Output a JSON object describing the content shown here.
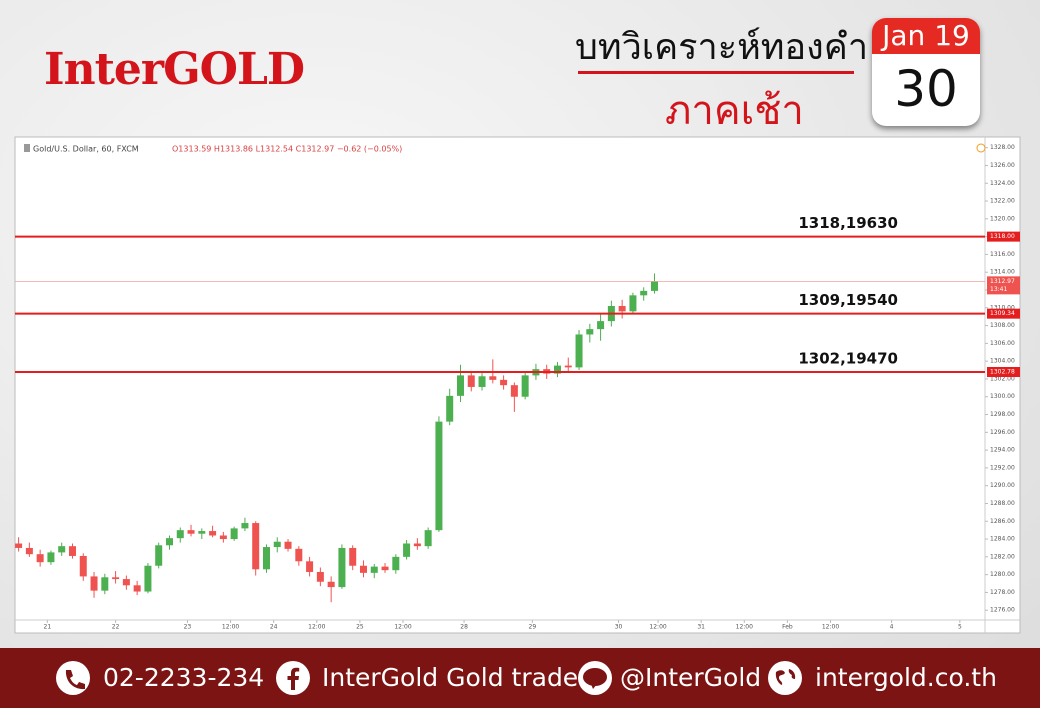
{
  "header": {
    "brand": "InterGOLD",
    "title": "บทวิเคราะห์ทองคำ",
    "subtitle": "ภาคเช้า",
    "calendar_month": "Jan 19",
    "calendar_day": "30"
  },
  "chart_data": {
    "type": "candlestick",
    "legend_symbol": "Gold/U.S. Dollar, 60, FXCM",
    "legend_values": "O1313.59 H1313.86 L1312.54 C1312.97 −0.62 (−0.05%)",
    "up_color": "#4caf50",
    "down_color": "#ef5350",
    "x": [
      1,
      4,
      7,
      10,
      13,
      16,
      19,
      22,
      25,
      28,
      31,
      34,
      37,
      40,
      43,
      46,
      49,
      52,
      55,
      58,
      61,
      64,
      67,
      70,
      73,
      76,
      79,
      82,
      85,
      88,
      91,
      94,
      97,
      100,
      103,
      106,
      109,
      112,
      115,
      118,
      121,
      124,
      127,
      130,
      133,
      136,
      139,
      142,
      145,
      148,
      151,
      154,
      157,
      160,
      163,
      166,
      169,
      172,
      175,
      178
    ],
    "open": [
      1283.5,
      1283.0,
      1282.3,
      1281.4,
      1282.5,
      1283.2,
      1282.1,
      1279.8,
      1278.2,
      1279.7,
      1279.5,
      1278.8,
      1278.1,
      1281.0,
      1283.3,
      1284.1,
      1285.0,
      1284.6,
      1284.9,
      1284.4,
      1284.0,
      1285.2,
      1285.8,
      1280.6,
      1283.1,
      1283.7,
      1282.9,
      1281.5,
      1280.3,
      1279.2,
      1278.6,
      1283.0,
      1281.0,
      1280.2,
      1280.9,
      1280.5,
      1282.0,
      1283.5,
      1283.2,
      1285.0,
      1297.2,
      1300.1,
      1302.4,
      1301.1,
      1302.3,
      1301.9,
      1301.3,
      1300.0,
      1302.4,
      1303.1,
      1302.6,
      1303.5,
      1303.3,
      1307.0,
      1307.6,
      1308.5,
      1310.2,
      1309.6,
      1311.4,
      1311.9
    ],
    "high": [
      1284.2,
      1283.6,
      1282.8,
      1282.7,
      1283.6,
      1283.5,
      1282.4,
      1280.3,
      1280.1,
      1280.4,
      1279.9,
      1279.3,
      1281.3,
      1283.6,
      1284.4,
      1285.3,
      1285.6,
      1285.2,
      1285.5,
      1284.8,
      1285.4,
      1286.4,
      1286.0,
      1283.4,
      1284.2,
      1284.0,
      1283.2,
      1282.0,
      1280.8,
      1279.8,
      1283.4,
      1283.3,
      1281.6,
      1281.2,
      1281.3,
      1282.3,
      1283.9,
      1284.1,
      1285.3,
      1297.8,
      1300.9,
      1303.6,
      1302.9,
      1302.8,
      1304.2,
      1302.4,
      1301.6,
      1302.8,
      1303.7,
      1303.6,
      1303.9,
      1304.4,
      1307.5,
      1308.2,
      1309.3,
      1310.8,
      1310.9,
      1311.7,
      1312.3,
      1313.86
    ],
    "low": [
      1282.6,
      1282.0,
      1280.9,
      1281.1,
      1282.1,
      1281.8,
      1279.3,
      1277.4,
      1277.8,
      1279.0,
      1278.3,
      1277.7,
      1277.9,
      1280.7,
      1282.8,
      1283.6,
      1284.3,
      1284.0,
      1284.2,
      1283.6,
      1283.8,
      1284.9,
      1279.9,
      1280.2,
      1282.5,
      1282.6,
      1281.0,
      1279.8,
      1278.7,
      1276.9,
      1278.4,
      1280.5,
      1279.7,
      1279.6,
      1280.2,
      1280.1,
      1281.7,
      1282.8,
      1282.9,
      1284.8,
      1296.8,
      1299.4,
      1300.6,
      1300.7,
      1301.5,
      1300.8,
      1298.3,
      1299.7,
      1301.9,
      1302.0,
      1302.2,
      1302.8,
      1303.0,
      1306.1,
      1306.3,
      1307.9,
      1308.8,
      1309.3,
      1310.8,
      1311.6
    ],
    "close": [
      1283.0,
      1282.3,
      1281.4,
      1282.5,
      1283.2,
      1282.1,
      1279.8,
      1278.2,
      1279.7,
      1279.5,
      1278.8,
      1278.1,
      1281.0,
      1283.3,
      1284.1,
      1285.0,
      1284.6,
      1284.9,
      1284.4,
      1284.0,
      1285.2,
      1285.8,
      1280.6,
      1283.1,
      1283.7,
      1282.9,
      1281.5,
      1280.3,
      1279.2,
      1278.6,
      1283.0,
      1281.0,
      1280.2,
      1280.9,
      1280.5,
      1282.0,
      1283.5,
      1283.2,
      1285.0,
      1297.2,
      1300.1,
      1302.4,
      1301.1,
      1302.3,
      1301.9,
      1301.3,
      1300.0,
      1302.4,
      1303.1,
      1302.6,
      1303.5,
      1303.3,
      1307.0,
      1307.6,
      1308.5,
      1310.2,
      1309.6,
      1311.4,
      1311.9,
      1312.97
    ],
    "xlim": [
      0,
      270
    ],
    "xticks": [
      {
        "value": 9,
        "label": "21"
      },
      {
        "value": 28,
        "label": "22"
      },
      {
        "value": 48,
        "label": "23"
      },
      {
        "value": 60,
        "label": "12:00"
      },
      {
        "value": 72,
        "label": "24"
      },
      {
        "value": 84,
        "label": "12:00"
      },
      {
        "value": 96,
        "label": "25"
      },
      {
        "value": 108,
        "label": "12:00"
      },
      {
        "value": 125,
        "label": "28"
      },
      {
        "value": 144,
        "label": "29"
      },
      {
        "value": 168,
        "label": "30"
      },
      {
        "value": 179,
        "label": "12:00"
      },
      {
        "value": 191,
        "label": "31"
      },
      {
        "value": 203,
        "label": "12:00"
      },
      {
        "value": 215,
        "label": "Feb"
      },
      {
        "value": 227,
        "label": "12:00"
      },
      {
        "value": 244,
        "label": "4"
      },
      {
        "value": 263,
        "label": "5"
      }
    ],
    "ylim": [
      1274.9,
      1329.2
    ],
    "yticks": [
      {
        "value": 1276,
        "label": "1276.00"
      },
      {
        "value": 1278,
        "label": "1278.00"
      },
      {
        "value": 1280,
        "label": "1280.00"
      },
      {
        "value": 1282,
        "label": "1282.00"
      },
      {
        "value": 1284,
        "label": "1284.00"
      },
      {
        "value": 1286,
        "label": "1286.00"
      },
      {
        "value": 1288,
        "label": "1288.00"
      },
      {
        "value": 1290,
        "label": "1290.00"
      },
      {
        "value": 1292,
        "label": "1292.00"
      },
      {
        "value": 1294,
        "label": "1294.00"
      },
      {
        "value": 1296,
        "label": "1296.00"
      },
      {
        "value": 1298,
        "label": "1298.00"
      },
      {
        "value": 1300,
        "label": "1300.00"
      },
      {
        "value": 1302,
        "label": "1302.00"
      },
      {
        "value": 1304,
        "label": "1304.00"
      },
      {
        "value": 1306,
        "label": "1306.00"
      },
      {
        "value": 1308,
        "label": "1308.00"
      },
      {
        "value": 1310,
        "label": "1310.00"
      },
      {
        "value": 1312,
        "label": "1312.00"
      },
      {
        "value": 1314,
        "label": "1314.00"
      },
      {
        "value": 1316,
        "label": "1316.00"
      },
      {
        "value": 1318,
        "label": "1318.00"
      },
      {
        "value": 1320,
        "label": "1320.00"
      },
      {
        "value": 1322,
        "label": "1322.00"
      },
      {
        "value": 1324,
        "label": "1324.00"
      },
      {
        "value": 1326,
        "label": "1326.00"
      },
      {
        "value": 1328,
        "label": "1328.00"
      }
    ],
    "levels": [
      {
        "value": 1318,
        "label": "1318.00",
        "annotation": "1318,19630"
      },
      {
        "value": 1309.34,
        "label": "1309.34",
        "annotation": "1309,19540"
      },
      {
        "value": 1302.78,
        "label": "1302.78",
        "annotation": "1302,19470"
      }
    ],
    "level_color": "#e41e1e",
    "last_price": {
      "value": 1312.97,
      "label": "1312.97",
      "time": "13:41"
    }
  },
  "footer": {
    "phone": "02-2233-234",
    "facebook": "InterGold Gold trade",
    "line": "@InterGold",
    "website": "intergold.co.th"
  }
}
